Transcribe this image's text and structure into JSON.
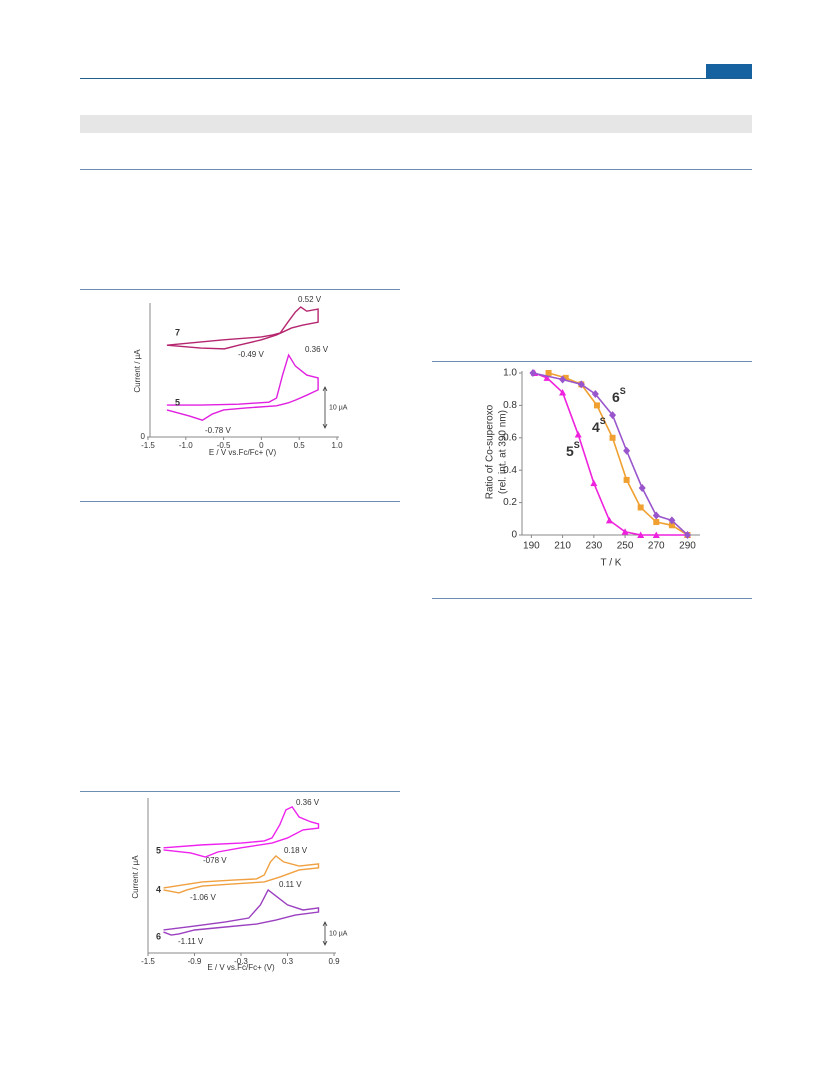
{
  "chart_data": [
    {
      "type": "line",
      "xlabel": "E / V vs.Fc/Fc+ (V)",
      "ylabel": "Current / µA",
      "xlim": [
        -1.5,
        1.0
      ],
      "xticks": [
        -1.5,
        {
          "value": -1,
          "label": "-1.0"
        },
        -0.5,
        0,
        0.5,
        {
          "value": 1,
          "label": "1.0"
        }
      ],
      "ylim": [
        0,
        32.2
      ],
      "yticks": [
        0
      ],
      "scale_bar": {
        "value": 10,
        "label": "10 µA"
      },
      "annotations": [
        "0.52 V",
        "-0.49 V",
        "0.36 V",
        "-0.78 V"
      ],
      "series": [
        {
          "name": "7",
          "color": "#b5266f",
          "x": [
            -1.25,
            -0.5,
            0,
            0.15,
            0.25,
            0.35,
            0.45,
            0.52,
            0.6,
            0.75,
            0.75,
            0.55,
            0.4,
            0.2,
            0,
            -0.3,
            -0.49,
            -0.8,
            -1.25
          ],
          "values": [
            22.4,
            23.7,
            24.4,
            24.9,
            25.4,
            28.0,
            30.5,
            31.7,
            30.7,
            31.2,
            28.0,
            27.3,
            26.6,
            24.9,
            23.7,
            22.4,
            21.5,
            21.7,
            22.4
          ]
        },
        {
          "name": "5",
          "color": "#e020e0",
          "x": [
            -1.25,
            -0.8,
            -0.3,
            0.1,
            0.2,
            0.28,
            0.36,
            0.45,
            0.6,
            0.75,
            0.75,
            0.6,
            0.45,
            0.35,
            0.2,
            -0.2,
            -0.5,
            -0.65,
            -0.78,
            -0.95,
            -1.25
          ],
          "values": [
            7.8,
            7.8,
            8.0,
            8.5,
            9.5,
            15.1,
            20.0,
            17.3,
            15.1,
            14.4,
            11.5,
            10.2,
            9.0,
            8.3,
            7.6,
            7.1,
            6.6,
            5.6,
            4.1,
            5.1,
            6.6
          ]
        }
      ]
    },
    {
      "type": "line",
      "xlabel": "T / K",
      "ylabel": [
        "Ratio of Co-superoxo",
        "(rel. int. at 390 nm)"
      ],
      "xlim": [
        184,
        298
      ],
      "xticks": [
        190,
        210,
        230,
        250,
        270,
        290
      ],
      "ylim": [
        0,
        1
      ],
      "yticks": [
        0,
        0.2,
        0.4,
        0.6,
        0.8,
        {
          "value": 1,
          "label": "1.0"
        }
      ],
      "series": [
        {
          "name": "5",
          "name_sup": "S",
          "color": "#ee22dd",
          "marker": "triangle",
          "x": [
            192,
            200,
            210,
            220,
            230,
            240,
            250,
            260,
            270,
            290
          ],
          "values": [
            1.0,
            0.97,
            0.88,
            0.62,
            0.32,
            0.09,
            0.02,
            0,
            0,
            0
          ]
        },
        {
          "name": "4",
          "name_sup": "S",
          "color": "#f0a030",
          "marker": "square",
          "x": [
            201,
            212,
            222,
            232,
            242,
            251,
            260,
            270,
            280,
            290
          ],
          "values": [
            1.0,
            0.97,
            0.93,
            0.8,
            0.6,
            0.34,
            0.17,
            0.08,
            0.06,
            0
          ]
        },
        {
          "name": "6",
          "name_sup": "S",
          "color": "#9955cc",
          "marker": "diamond",
          "x": [
            191,
            210,
            222,
            231,
            242,
            251,
            261,
            270,
            280,
            290
          ],
          "values": [
            1.0,
            0.96,
            0.93,
            0.87,
            0.74,
            0.52,
            0.29,
            0.12,
            0.09,
            0
          ]
        }
      ]
    },
    {
      "type": "line",
      "xlabel": "E / V vs.Fc/Fc+ (V)",
      "ylabel": "Current / µA",
      "xlim": [
        -1.5,
        0.9
      ],
      "xticks": [
        -1.5,
        -0.9,
        -0.3,
        0.3,
        0.9
      ],
      "ylim": [
        0,
        66.5
      ],
      "yticks": [],
      "scale_bar": {
        "value": 10,
        "label": "10 µA"
      },
      "annotations": [
        "0.36 V",
        "-078 V",
        "0.18 V",
        "-1.06 V",
        "0.11 V",
        "-1.11 V"
      ],
      "series": [
        {
          "name": "5",
          "color": "#ee22ee",
          "x": [
            -1.3,
            -0.8,
            -0.3,
            0.0,
            0.1,
            0.2,
            0.28,
            0.36,
            0.45,
            0.6,
            0.7,
            0.7,
            0.5,
            0.3,
            0.1,
            -0.3,
            -0.6,
            -0.76,
            -0.95,
            -1.3
          ],
          "values": [
            45.7,
            47.0,
            47.8,
            48.7,
            50.0,
            55.7,
            62.2,
            63.5,
            59.1,
            57.0,
            56.1,
            54.3,
            53.5,
            50.0,
            47.8,
            45.7,
            43.9,
            41.7,
            43.5,
            44.8
          ]
        },
        {
          "name": "4",
          "color": "#f0a040",
          "x": [
            -1.3,
            -0.8,
            -0.4,
            -0.1,
            0.0,
            0.08,
            0.15,
            0.25,
            0.45,
            0.7,
            0.7,
            0.45,
            0.2,
            0.0,
            -0.4,
            -0.8,
            -1.0,
            -1.1,
            -1.3
          ],
          "values": [
            28.3,
            30.9,
            31.7,
            32.2,
            33.9,
            39.6,
            42.2,
            39.6,
            37.8,
            38.7,
            37.0,
            36.1,
            33.0,
            30.9,
            30.0,
            29.1,
            27.4,
            26.1,
            27.4
          ]
        },
        {
          "name": "6",
          "color": "#9b40c0",
          "x": [
            -1.3,
            -0.9,
            -0.5,
            -0.2,
            -0.05,
            0.05,
            0.15,
            0.3,
            0.5,
            0.7,
            0.7,
            0.4,
            0.15,
            -0.1,
            -0.5,
            -0.9,
            -1.1,
            -1.2,
            -1.3
          ],
          "values": [
            10.0,
            11.7,
            13.5,
            15.2,
            20.9,
            27.4,
            24.8,
            20.9,
            18.7,
            19.6,
            17.8,
            16.5,
            14.3,
            12.6,
            11.3,
            10.0,
            8.3,
            7.8,
            9.1
          ]
        }
      ]
    }
  ]
}
